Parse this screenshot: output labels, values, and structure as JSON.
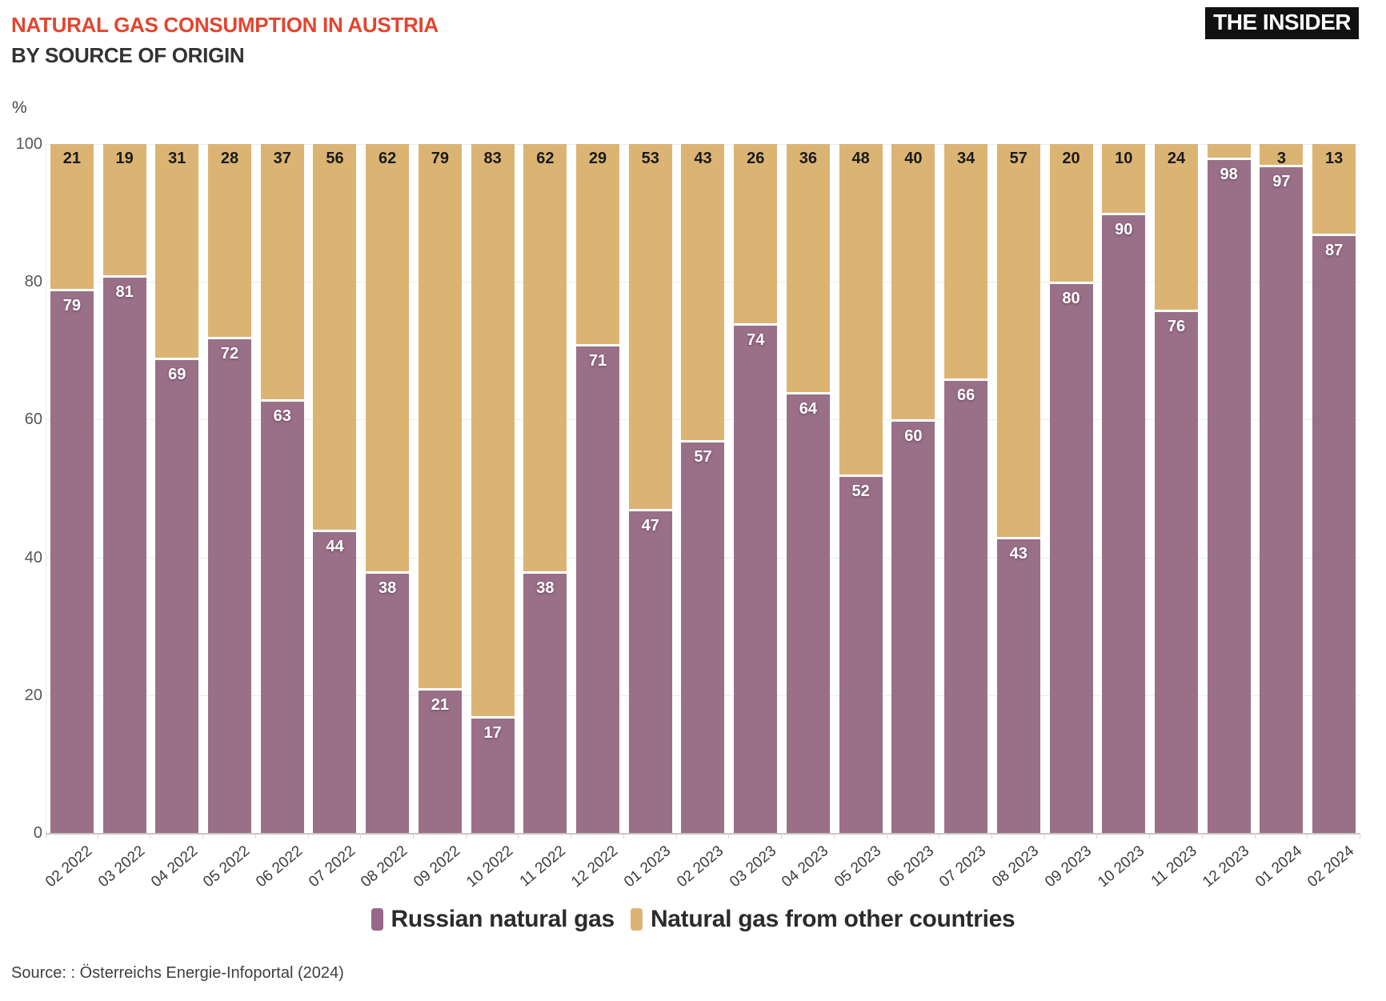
{
  "header": {
    "title": "NATURAL GAS CONSUMPTION IN AUSTRIA",
    "subtitle": "BY SOURCE OF ORIGIN",
    "logo": "THE INSIDER"
  },
  "axis": {
    "unit": "%",
    "yticks": [
      100,
      80,
      60,
      40,
      20,
      0
    ]
  },
  "legend": [
    {
      "label": "Russian natural gas",
      "color": "#96688a"
    },
    {
      "label": "Natural gas from other countries",
      "color": "#dbb474"
    }
  ],
  "source": "Source: : Österreichs Energie-Infoportal (2024)",
  "chart_data": {
    "type": "bar",
    "stacked": true,
    "title": "Natural gas consumption in Austria by source of origin",
    "ylabel": "%",
    "ylim": [
      0,
      100
    ],
    "grid": "horizontal",
    "legend_position": "bottom",
    "label_min_display": 3,
    "categories": [
      "02 2022",
      "03 2022",
      "04 2022",
      "05 2022",
      "06 2022",
      "07 2022",
      "08 2022",
      "09 2022",
      "10 2022",
      "11 2022",
      "12 2022",
      "01 2023",
      "02 2023",
      "03 2023",
      "04 2023",
      "05 2023",
      "06 2023",
      "07 2023",
      "08 2023",
      "09 2023",
      "10 2023",
      "11 2023",
      "12 2023",
      "01 2024",
      "02 2024"
    ],
    "series": [
      {
        "name": "Russian natural gas",
        "color": "#9a7089",
        "values": [
          79,
          81,
          69,
          72,
          63,
          44,
          38,
          21,
          17,
          38,
          71,
          47,
          57,
          74,
          64,
          52,
          60,
          66,
          43,
          80,
          90,
          76,
          98,
          97,
          87
        ]
      },
      {
        "name": "Natural gas from other countries",
        "color": "#dbb474",
        "values": [
          21,
          19,
          31,
          28,
          37,
          56,
          62,
          79,
          83,
          62,
          29,
          53,
          43,
          26,
          36,
          48,
          40,
          34,
          57,
          20,
          10,
          24,
          2,
          3,
          13
        ]
      }
    ]
  }
}
